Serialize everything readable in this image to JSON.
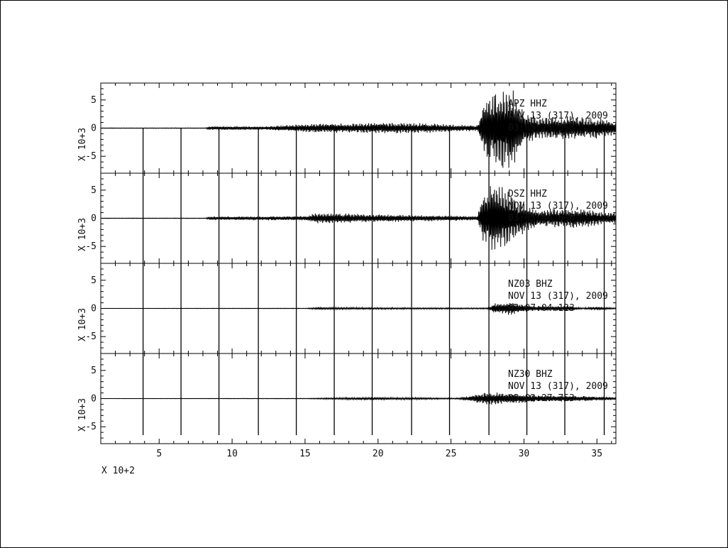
{
  "chart_data": {
    "type": "line",
    "title": "",
    "xlabel": "",
    "ylabel": "",
    "x_multiplier_label": "X 10+2",
    "xlim": [
      1.0,
      36.3
    ],
    "x_ticks": [
      5,
      10,
      15,
      20,
      25,
      30,
      35
    ],
    "x_tick_labels": [
      "5",
      "10",
      "15",
      "20",
      "25",
      "30",
      "35"
    ],
    "vertical_markers": [
      3.9,
      6.5,
      9.1,
      11.8,
      14.4,
      17.0,
      19.6,
      22.3,
      24.9,
      27.6,
      30.2,
      32.8,
      35.5
    ],
    "grid": false,
    "panels": [
      {
        "station": "APZ",
        "channel": "HHZ",
        "date_line": "NOV 13 (317), 2009",
        "time_line": "03:05:25.568",
        "y_multiplier_label": "X 10+3",
        "ylim": [
          -8,
          8
        ],
        "y_ticks": [
          5,
          0,
          -5
        ],
        "y_tick_labels": [
          "5",
          "0",
          "-5"
        ],
        "envelope": [
          {
            "x": 1.0,
            "amp": 0.05
          },
          {
            "x": 8.2,
            "amp": 0.05
          },
          {
            "x": 8.4,
            "amp": 0.35
          },
          {
            "x": 12.0,
            "amp": 0.3
          },
          {
            "x": 15.5,
            "amp": 0.8
          },
          {
            "x": 18.0,
            "amp": 0.9
          },
          {
            "x": 22.0,
            "amp": 1.0
          },
          {
            "x": 26.8,
            "amp": 0.5
          },
          {
            "x": 27.3,
            "amp": 5.0
          },
          {
            "x": 28.5,
            "amp": 8.0
          },
          {
            "x": 29.2,
            "amp": 7.5
          },
          {
            "x": 30.0,
            "amp": 3.0
          },
          {
            "x": 31.0,
            "amp": 2.0
          },
          {
            "x": 33.0,
            "amp": 2.2
          },
          {
            "x": 35.0,
            "amp": 2.0
          },
          {
            "x": 36.3,
            "amp": 1.2
          }
        ]
      },
      {
        "station": "DSZ",
        "channel": "HHZ",
        "date_line": "NOV 13 (317), 2009",
        "time_line": "03:05:56.608",
        "y_multiplier_label": "X 10+3",
        "ylim": [
          -8,
          8
        ],
        "y_ticks": [
          5,
          0,
          -5
        ],
        "y_tick_labels": [
          "5",
          "0",
          "-5"
        ],
        "envelope": [
          {
            "x": 1.0,
            "amp": 0.05
          },
          {
            "x": 8.2,
            "amp": 0.05
          },
          {
            "x": 8.4,
            "amp": 0.3
          },
          {
            "x": 15.0,
            "amp": 0.4
          },
          {
            "x": 15.8,
            "amp": 1.0
          },
          {
            "x": 20.0,
            "amp": 0.7
          },
          {
            "x": 26.8,
            "amp": 0.4
          },
          {
            "x": 27.2,
            "amp": 4.5
          },
          {
            "x": 27.8,
            "amp": 6.5
          },
          {
            "x": 28.6,
            "amp": 6.0
          },
          {
            "x": 29.5,
            "amp": 3.5
          },
          {
            "x": 31.0,
            "amp": 1.5
          },
          {
            "x": 33.0,
            "amp": 2.0
          },
          {
            "x": 35.5,
            "amp": 1.2
          },
          {
            "x": 36.3,
            "amp": 1.0
          }
        ]
      },
      {
        "station": "NZ03",
        "channel": "BHZ",
        "date_line": "NOV 13 (317), 2009",
        "time_line": "03:07:04.123",
        "y_multiplier_label": "X 10+3",
        "ylim": [
          -8,
          8
        ],
        "y_ticks": [
          5,
          0,
          -5
        ],
        "y_tick_labels": [
          "5",
          "0",
          "-5"
        ],
        "envelope": [
          {
            "x": 1.0,
            "amp": 0.02
          },
          {
            "x": 15.0,
            "amp": 0.05
          },
          {
            "x": 16.0,
            "amp": 0.2
          },
          {
            "x": 20.0,
            "amp": 0.15
          },
          {
            "x": 27.5,
            "amp": 0.1
          },
          {
            "x": 28.0,
            "amp": 0.9
          },
          {
            "x": 29.0,
            "amp": 1.2
          },
          {
            "x": 30.5,
            "amp": 0.4
          },
          {
            "x": 33.0,
            "amp": 0.5
          },
          {
            "x": 34.0,
            "amp": 0.1
          },
          {
            "x": 35.0,
            "amp": 0.3
          },
          {
            "x": 36.3,
            "amp": 0.1
          }
        ]
      },
      {
        "station": "NZ30",
        "channel": "BHZ",
        "date_line": "NOV 13 (317), 2009",
        "time_line": "03:02:37.753",
        "y_multiplier_label": "X 10+3",
        "ylim": [
          -8,
          8
        ],
        "y_ticks": [
          5,
          0,
          -5
        ],
        "y_tick_labels": [
          "5",
          "0",
          "-5"
        ],
        "envelope": [
          {
            "x": 1.0,
            "amp": 0.02
          },
          {
            "x": 15.0,
            "amp": 0.05
          },
          {
            "x": 19.0,
            "amp": 0.25
          },
          {
            "x": 25.5,
            "amp": 0.1
          },
          {
            "x": 26.5,
            "amp": 0.6
          },
          {
            "x": 27.5,
            "amp": 1.2
          },
          {
            "x": 28.8,
            "amp": 1.0
          },
          {
            "x": 31.0,
            "amp": 0.6
          },
          {
            "x": 34.0,
            "amp": 0.5
          },
          {
            "x": 36.3,
            "amp": 0.2
          }
        ]
      }
    ]
  }
}
